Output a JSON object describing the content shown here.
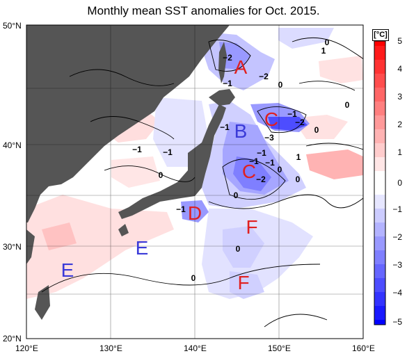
{
  "title": "Monthly mean SST anomalies for Oct. 2015.",
  "unit": "[°C]",
  "lat_labels": [
    "50°N",
    "40°N",
    "30°N",
    "20°N"
  ],
  "lon_labels": [
    "120°E",
    "130°E",
    "140°E",
    "150°E",
    "160°E"
  ],
  "colorbar": {
    "ticks": [
      "5",
      "4",
      "3",
      "2",
      "1",
      "0",
      "−1",
      "−2",
      "−3",
      "−4",
      "−5"
    ],
    "warm_colors": [
      "#ffe6e6",
      "#ffcccc",
      "#ffb3b3",
      "#ff9999",
      "#ff7f7f",
      "#ff6666",
      "#ff4d4d",
      "#ff3333",
      "#ff1a1a",
      "#ff0000"
    ],
    "cool_colors": [
      "#e6e6ff",
      "#ccccff",
      "#b3b3ff",
      "#9999ff",
      "#7f7fff",
      "#6666ff",
      "#4d4dff",
      "#3333ff",
      "#1a1aff",
      "#0000ff"
    ]
  },
  "region_labels": [
    {
      "text": "A",
      "color": "#e02020"
    },
    {
      "text": "B",
      "color": "#3a3ad8"
    },
    {
      "text": "C",
      "color": "#e02020"
    },
    {
      "text": "C",
      "color": "#e02020"
    },
    {
      "text": "D",
      "color": "#e02020"
    },
    {
      "text": "E",
      "color": "#3a3ad8"
    },
    {
      "text": "E",
      "color": "#3a3ad8"
    },
    {
      "text": "F",
      "color": "#e02020"
    },
    {
      "text": "F",
      "color": "#e02020"
    }
  ],
  "contour_labels": [
    "−2",
    "−1",
    "−2",
    "0",
    "0",
    "1",
    "0",
    "−1",
    "−2",
    "−1",
    "−3",
    "0",
    "−1",
    "−1",
    "0",
    "−1",
    "1",
    "−2",
    "0",
    "0",
    "−1",
    "−1",
    "0"
  ],
  "colors": {
    "land": "#555555",
    "ocean": "#ffffff",
    "grid": "#000000"
  }
}
